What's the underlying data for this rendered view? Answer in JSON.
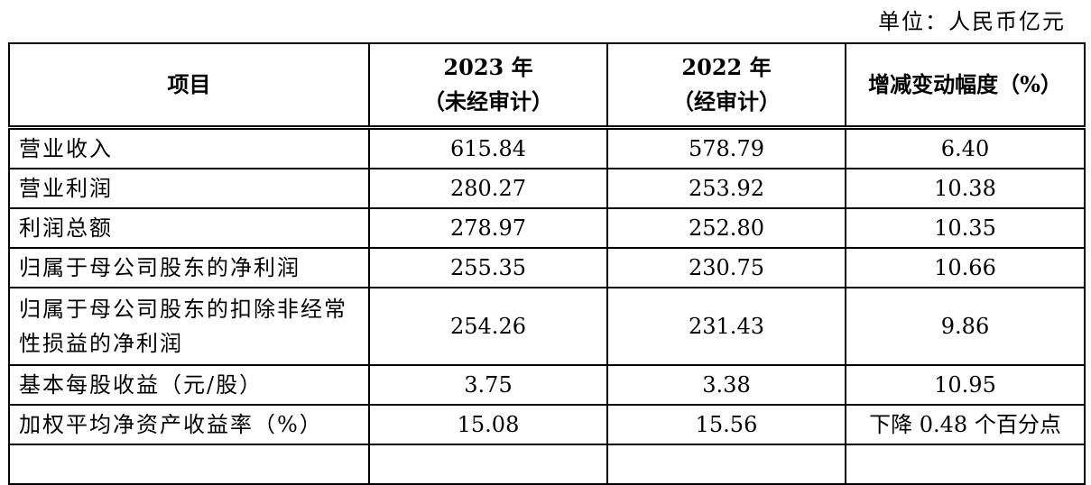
{
  "header": {
    "unit": "单位：人民币亿元"
  },
  "table": {
    "columns": [
      [
        "项目"
      ],
      [
        "2023 年",
        "（未经审计）"
      ],
      [
        "2022 年",
        "（经审计）"
      ],
      [
        "增减变动幅度（%）"
      ]
    ],
    "rows": [
      [
        "营业收入",
        "615.84",
        "578.79",
        "6.40"
      ],
      [
        "营业利润",
        "280.27",
        "253.92",
        "10.38"
      ],
      [
        "利润总额",
        "278.97",
        "252.80",
        "10.35"
      ],
      [
        "归属于母公司股东的净利润",
        "255.35",
        "230.75",
        "10.66"
      ],
      [
        "归属于母公司股东的扣除非经常性损益的净利润",
        "254.26",
        "231.43",
        "9.86"
      ],
      [
        "基本每股收益（元/股）",
        "3.75",
        "3.38",
        "10.95"
      ],
      [
        "加权平均净资产收益率（%）",
        "15.08",
        "15.56",
        "下降 0.48 个百分点"
      ]
    ]
  }
}
